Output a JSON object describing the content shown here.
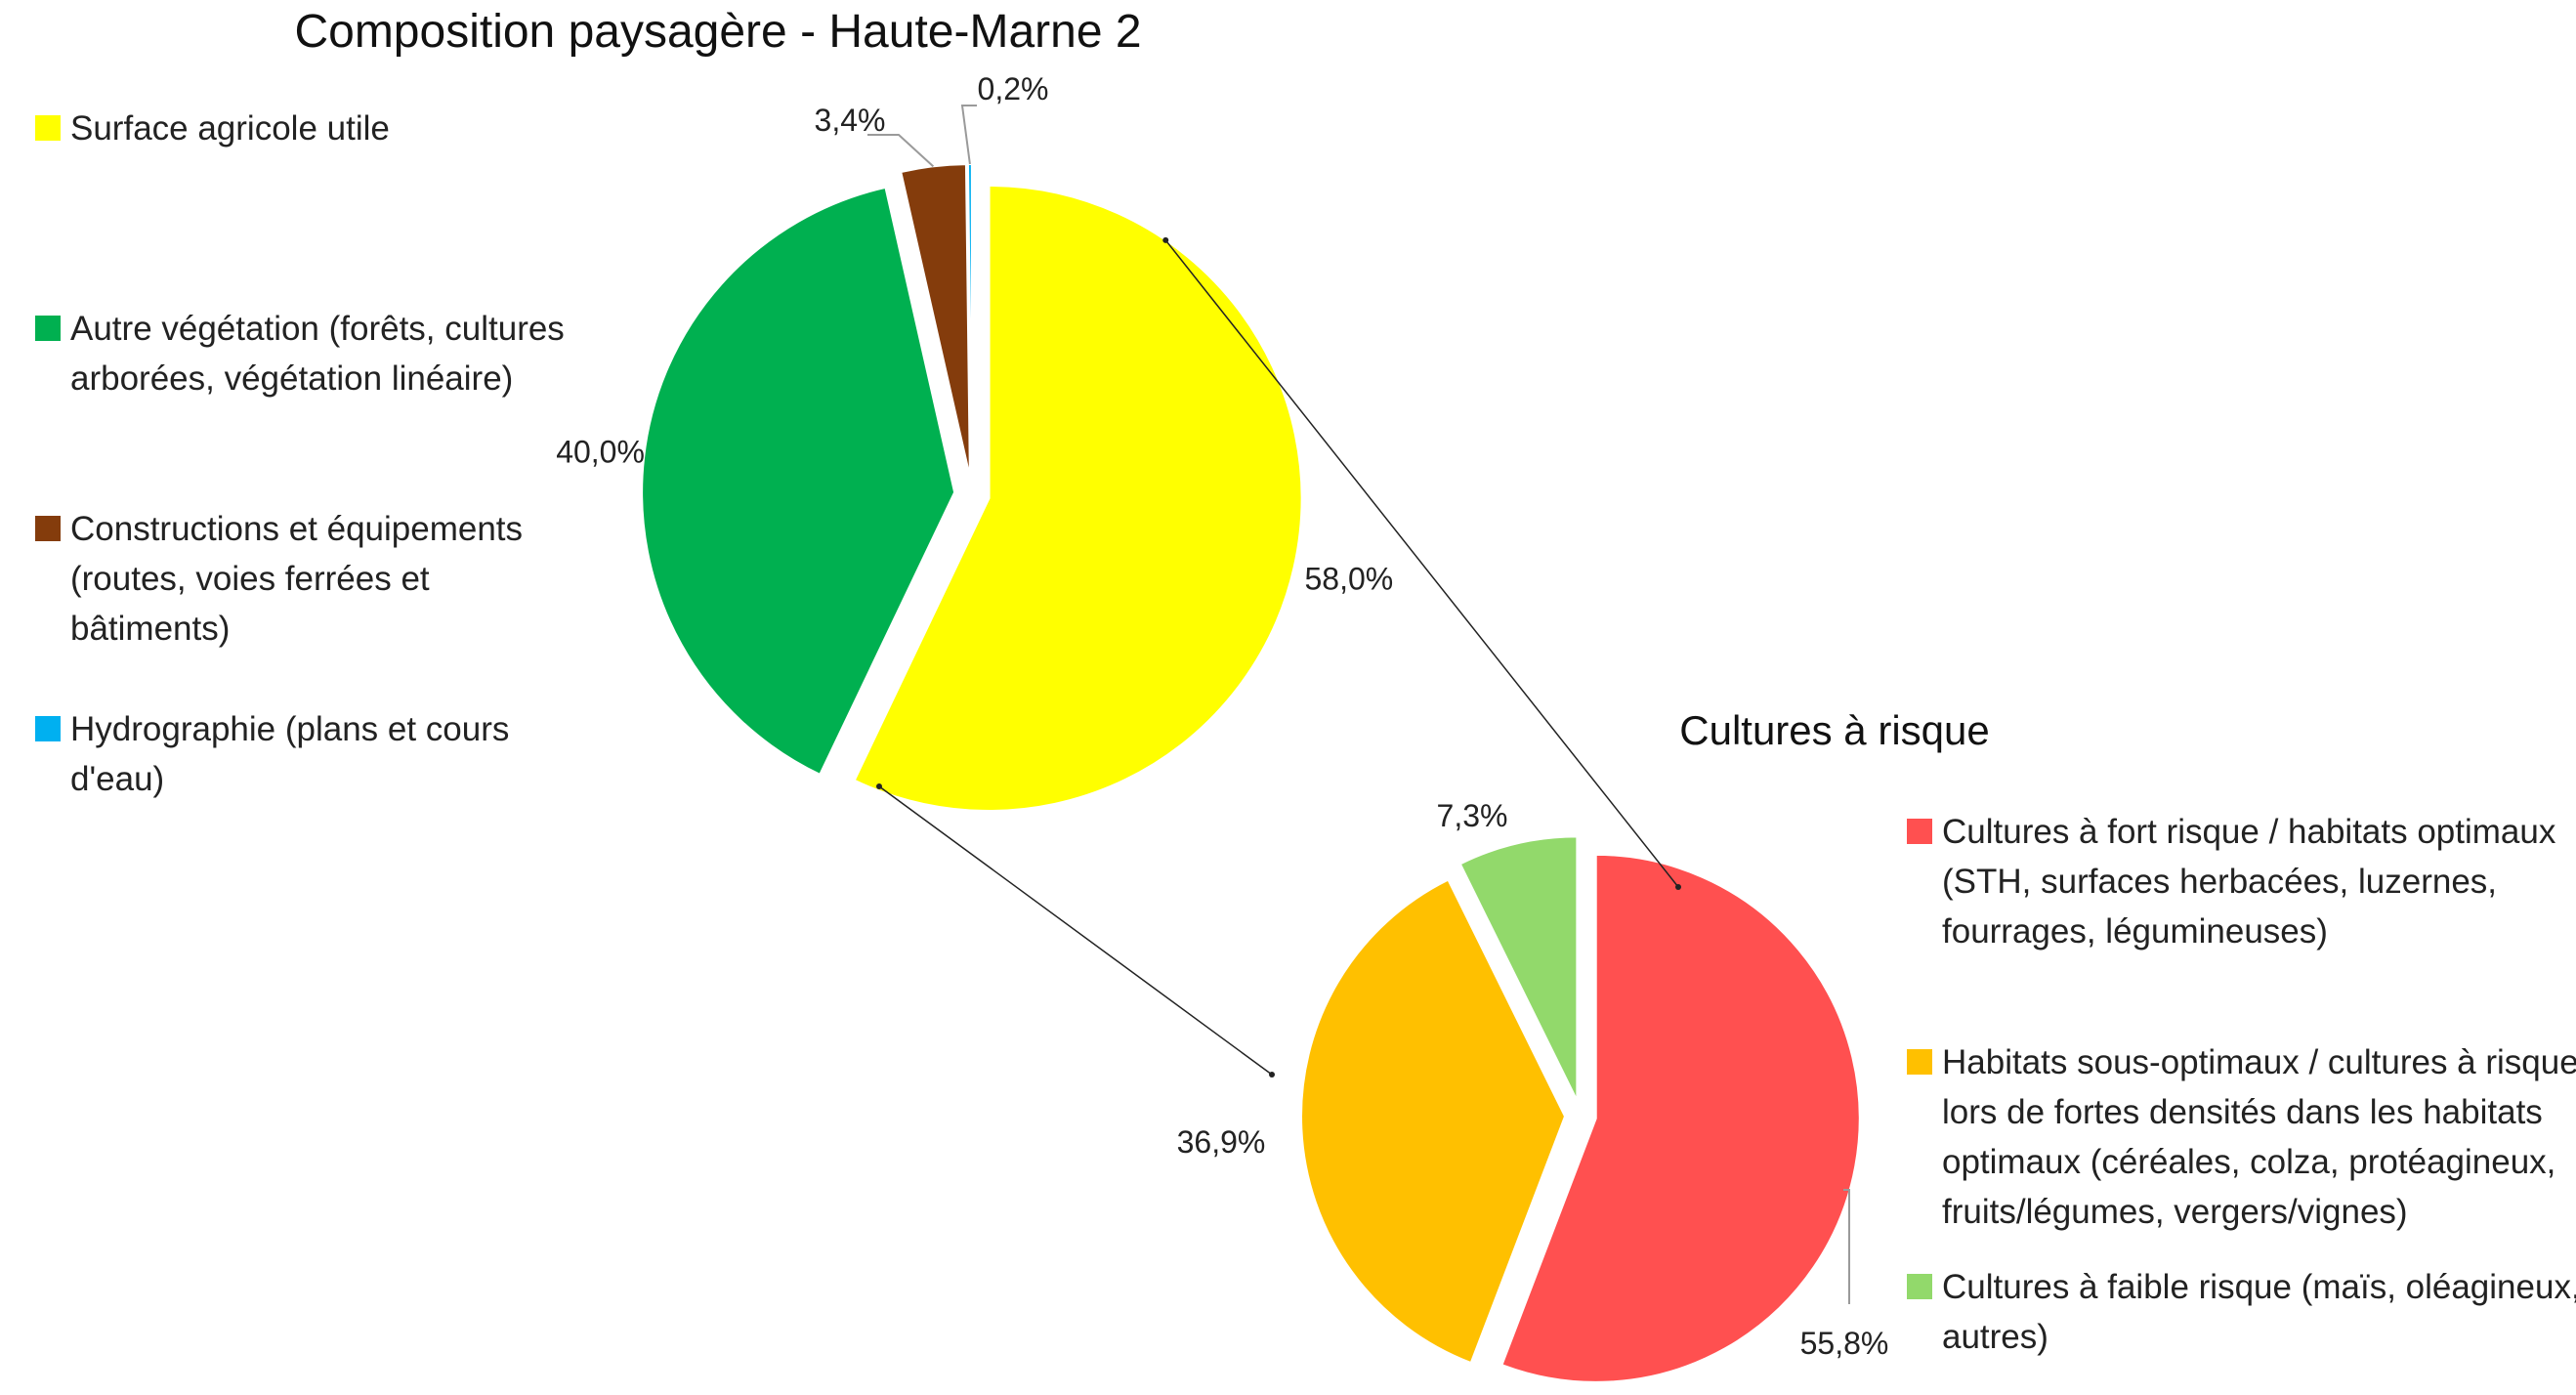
{
  "chart_data": [
    {
      "type": "pie",
      "title": "Composition paysagère - Haute-Marne 2",
      "categories": [
        "Surface agricole utile",
        "Autre végétation (forêts, cultures arborées, végétation linéaire)",
        "Constructions et équipements (routes, voies ferrées et bâtiments)",
        "Hydrographie (plans et cours d'eau)"
      ],
      "values": [
        58.0,
        40.0,
        3.4,
        0.2
      ],
      "data_labels": [
        "58,0%",
        "40,0%",
        "3,4%",
        "0,2%"
      ],
      "colors": [
        "#FFFF00",
        "#00B050",
        "#843C0C",
        "#00B0F0"
      ],
      "legend_lines": [
        [
          "Surface agricole utile"
        ],
        [
          "Autre végétation (forêts, cultures",
          "arborées, végétation linéaire)"
        ],
        [
          "Constructions et équipements",
          "(routes, voies ferrées et",
          "bâtiments)"
        ],
        [
          "Hydrographie (plans et cours",
          "d'eau)"
        ]
      ],
      "legend_position": "left",
      "exploded": true
    },
    {
      "type": "pie",
      "title": "Cultures à risque",
      "categories": [
        "Cultures à fort risque / habitats optimaux (STH, surfaces herbacées, luzernes, fourrages, légumineuses)",
        "Habitats sous-optimaux / cultures à risque lors de fortes densités dans les habitats optimaux (céréales, colza, protéagineux, fruits/légumes, vergers/vignes)",
        "Cultures à faible risque (maïs, oléagineux, autres)"
      ],
      "values": [
        55.8,
        36.9,
        7.3
      ],
      "data_labels": [
        "55,8%",
        "36,9%",
        "7,3%"
      ],
      "colors": [
        "#FF5050",
        "#FFC000",
        "#92D96B"
      ],
      "legend_lines": [
        [
          "Cultures à fort risque / habitats optimaux",
          "(STH, surfaces herbacées, luzernes,",
          "fourrages, légumineuses)"
        ],
        [
          "Habitats sous-optimaux / cultures à risque",
          "lors de fortes densités dans les habitats",
          "optimaux   (céréales, colza, protéagineux,",
          "fruits/légumes, vergers/vignes)"
        ],
        [
          "Cultures à faible risque (maïs, oléagineux,",
          "autres)"
        ]
      ],
      "legend_position": "right",
      "exploded": true
    }
  ]
}
